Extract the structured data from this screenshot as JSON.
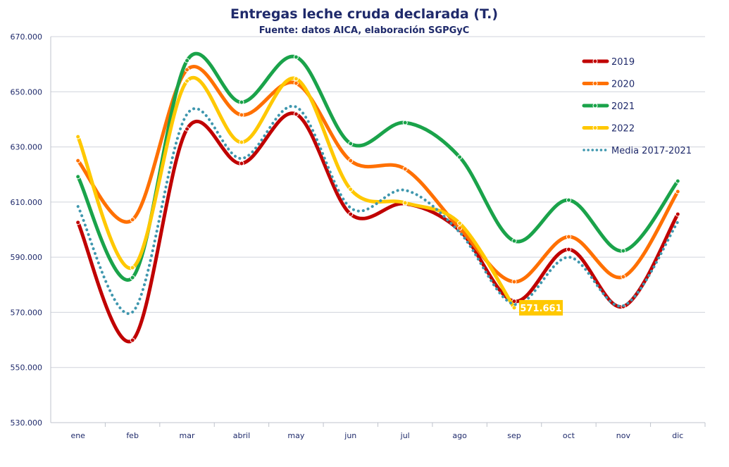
{
  "chart_data": {
    "type": "line",
    "title": "Entregas leche cruda declarada (T.)",
    "subtitle": "Fuente: datos AICA, elaboración SGPGyC",
    "categories": [
      "ene",
      "feb",
      "mar",
      "abril",
      "may",
      "jun",
      "jul",
      "ago",
      "sep",
      "oct",
      "nov",
      "dic"
    ],
    "ylim": [
      530000,
      670000
    ],
    "yticks": [
      530000,
      550000,
      570000,
      590000,
      610000,
      630000,
      650000,
      670000
    ],
    "ytick_labels": [
      "530.000",
      "550.000",
      "570.000",
      "590.000",
      "610.000",
      "630.000",
      "650.000",
      "670.000"
    ],
    "grid": true,
    "legend_placement": "top-right",
    "series": [
      {
        "name": "2019",
        "color": "#C00000",
        "style": "solid",
        "values": [
          602600,
          559900,
          636500,
          624000,
          641900,
          605600,
          609400,
          599700,
          574000,
          592800,
          572100,
          605600
        ]
      },
      {
        "name": "2020",
        "color": "#FF7000",
        "style": "solid",
        "values": [
          625000,
          603600,
          658000,
          641600,
          653100,
          625000,
          622000,
          600500,
          581100,
          597400,
          582900,
          613800
        ]
      },
      {
        "name": "2021",
        "color": "#1AA34A",
        "style": "solid",
        "values": [
          619200,
          582600,
          661300,
          646200,
          662600,
          631200,
          638800,
          626300,
          595900,
          610700,
          592300,
          617600
        ]
      },
      {
        "name": "2022",
        "color": "#FFC800",
        "style": "solid",
        "values": [
          633700,
          586200,
          653900,
          631700,
          654700,
          614600,
          609700,
          602300,
          571661,
          null,
          null,
          null
        ]
      },
      {
        "name": "Media 2017-2021",
        "color": "#3F97AE",
        "style": "dotted",
        "values": [
          608400,
          570100,
          641900,
          625800,
          644500,
          607900,
          614300,
          599000,
          572900,
          590000,
          572400,
          602800
        ]
      }
    ],
    "annotations": [
      {
        "series": "2022",
        "category": "sep",
        "text": "571.661",
        "background": "#FFC800"
      }
    ]
  }
}
